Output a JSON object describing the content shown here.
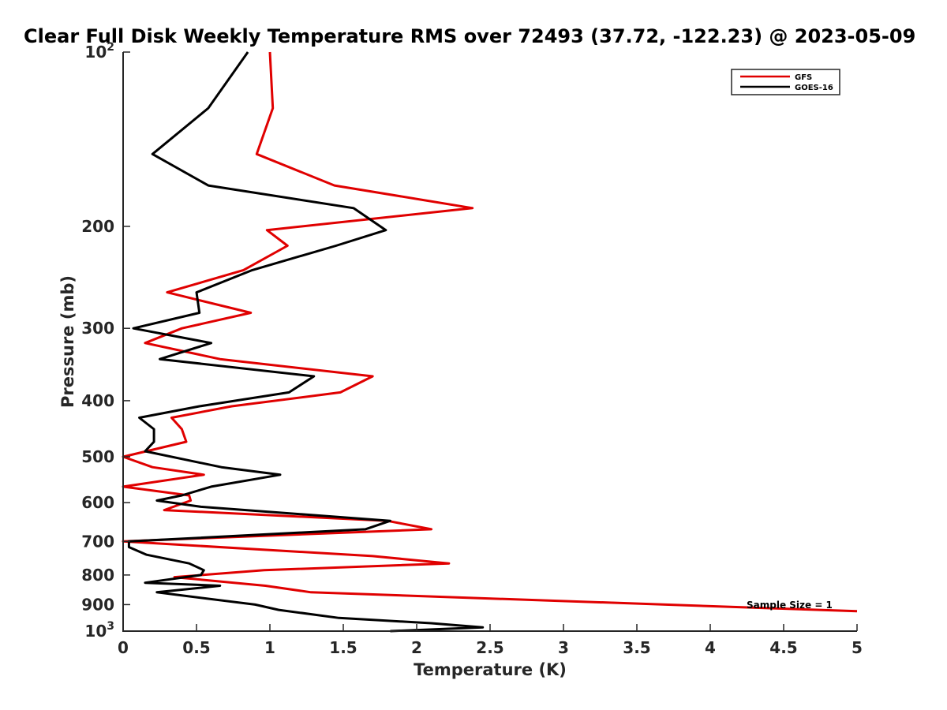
{
  "chart_data": {
    "type": "line",
    "title": "Clear Full Disk Weekly Temperature RMS over 72493 (37.72, -122.23) @ 2023-05-09",
    "xlabel": "Temperature (K)",
    "ylabel": "Pressure (mb)",
    "xlim": [
      0,
      5
    ],
    "ylim": [
      100,
      1000
    ],
    "yscale": "log",
    "y_reversed": true,
    "x_ticks": [
      0,
      0.5,
      1,
      1.5,
      2,
      2.5,
      3,
      3.5,
      4,
      4.5,
      5
    ],
    "x_tick_labels": [
      "0",
      "0.5",
      "1",
      "1.5",
      "2",
      "2.5",
      "3",
      "3.5",
      "4",
      "4.5",
      "5"
    ],
    "y_ticks": [
      {
        "value": 100,
        "base": "10",
        "exp": "2"
      },
      {
        "value": 200,
        "label": "200"
      },
      {
        "value": 300,
        "label": "300"
      },
      {
        "value": 400,
        "label": "400"
      },
      {
        "value": 500,
        "label": "500"
      },
      {
        "value": 600,
        "label": "600"
      },
      {
        "value": 700,
        "label": "700"
      },
      {
        "value": 800,
        "label": "800"
      },
      {
        "value": 900,
        "label": "900"
      },
      {
        "value": 1000,
        "base": "10",
        "exp": "3"
      }
    ],
    "grid": false,
    "legend_position": "top-right",
    "annotation": "Sample Size = 1",
    "series": [
      {
        "name": "GFS",
        "color": "#e00000",
        "points": [
          [
            1.0,
            100
          ],
          [
            1.02,
            125
          ],
          [
            0.91,
            150
          ],
          [
            1.44,
            170
          ],
          [
            2.38,
            186
          ],
          [
            0.98,
            203
          ],
          [
            1.12,
            216
          ],
          [
            0.82,
            238
          ],
          [
            0.3,
            260
          ],
          [
            0.87,
            282
          ],
          [
            0.4,
            300
          ],
          [
            0.15,
            318
          ],
          [
            0.66,
            339
          ],
          [
            1.7,
            363
          ],
          [
            1.48,
            387
          ],
          [
            0.74,
            409
          ],
          [
            0.33,
            428
          ],
          [
            0.4,
            448
          ],
          [
            0.43,
            471
          ],
          [
            0.0,
            500
          ],
          [
            0.2,
            521
          ],
          [
            0.55,
            537
          ],
          [
            0.0,
            563
          ],
          [
            0.45,
            583
          ],
          [
            0.46,
            595
          ],
          [
            0.28,
            618
          ],
          [
            1.8,
            645
          ],
          [
            2.1,
            667
          ],
          [
            0.0,
            700
          ],
          [
            1.7,
            742
          ],
          [
            2.22,
            764
          ],
          [
            0.96,
            785
          ],
          [
            0.35,
            807
          ],
          [
            0.97,
            835
          ],
          [
            1.28,
            857
          ],
          [
            5.0,
            924
          ]
        ]
      },
      {
        "name": "GOES-16",
        "color": "#000000",
        "points": [
          [
            0.85,
            100
          ],
          [
            0.58,
            125
          ],
          [
            0.2,
            150
          ],
          [
            0.58,
            170
          ],
          [
            1.57,
            186
          ],
          [
            1.79,
            203
          ],
          [
            1.45,
            216
          ],
          [
            0.88,
            238
          ],
          [
            0.5,
            260
          ],
          [
            0.52,
            282
          ],
          [
            0.07,
            300
          ],
          [
            0.6,
            318
          ],
          [
            0.25,
            339
          ],
          [
            1.3,
            363
          ],
          [
            1.13,
            387
          ],
          [
            0.52,
            409
          ],
          [
            0.11,
            428
          ],
          [
            0.21,
            448
          ],
          [
            0.21,
            471
          ],
          [
            0.15,
            489
          ],
          [
            0.67,
            521
          ],
          [
            1.07,
            537
          ],
          [
            0.6,
            563
          ],
          [
            0.4,
            583
          ],
          [
            0.23,
            595
          ],
          [
            0.53,
            610
          ],
          [
            1.82,
            645
          ],
          [
            1.65,
            667
          ],
          [
            0.04,
            700
          ],
          [
            0.04,
            716
          ],
          [
            0.16,
            738
          ],
          [
            0.45,
            764
          ],
          [
            0.55,
            785
          ],
          [
            0.53,
            800
          ],
          [
            0.15,
            825
          ],
          [
            0.66,
            835
          ],
          [
            0.23,
            857
          ],
          [
            0.9,
            900
          ],
          [
            1.06,
            919
          ],
          [
            1.47,
            949
          ],
          [
            2.1,
            969
          ],
          [
            2.45,
            985
          ],
          [
            1.82,
            1000
          ]
        ]
      }
    ]
  }
}
